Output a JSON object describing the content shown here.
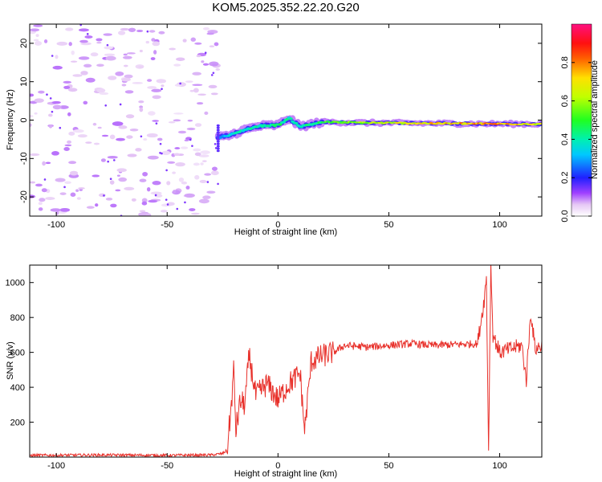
{
  "title": "KOM5.2025.352.22.20.G20",
  "chart_data": [
    {
      "type": "heatmap",
      "name": "spectrogram",
      "xlabel": "Height of straight line (km)",
      "ylabel": "Frequency (Hz)",
      "xlim": [
        -112,
        119
      ],
      "ylim": [
        -25,
        25
      ],
      "xticks": [
        -100,
        -50,
        0,
        50,
        100
      ],
      "yticks": [
        -20,
        -10,
        0,
        10,
        20
      ],
      "colorbar": {
        "label": "Normalized spectral amplitude",
        "range": [
          0,
          1
        ],
        "ticks": [
          0.0,
          0.2,
          0.4,
          0.6,
          0.8
        ],
        "colormap": "white-purple-blue-cyan-green-yellow-red-magenta"
      },
      "ridge": [
        {
          "x": -27,
          "freq": -4.5,
          "amp": 0.3
        },
        {
          "x": -22,
          "freq": -4.0,
          "amp": 0.35
        },
        {
          "x": -15,
          "freq": -2.5,
          "amp": 0.38
        },
        {
          "x": -8,
          "freq": -1.5,
          "amp": 0.4
        },
        {
          "x": 0,
          "freq": -1.3,
          "amp": 0.45
        },
        {
          "x": 5,
          "freq": 0.5,
          "amp": 0.4
        },
        {
          "x": 10,
          "freq": -1.7,
          "amp": 0.4
        },
        {
          "x": 20,
          "freq": -0.5,
          "amp": 0.5
        },
        {
          "x": 40,
          "freq": -0.7,
          "amp": 0.6
        },
        {
          "x": 60,
          "freq": -0.8,
          "amp": 0.7
        },
        {
          "x": 80,
          "freq": -0.9,
          "amp": 0.75
        },
        {
          "x": 100,
          "freq": -1.0,
          "amp": 0.8
        },
        {
          "x": 119,
          "freq": -1.0,
          "amp": 0.65
        }
      ]
    },
    {
      "type": "line",
      "name": "snr",
      "xlabel": "Height of straight line (km)",
      "ylabel": "SNR (v/v)",
      "xlim": [
        -112,
        119
      ],
      "ylim": [
        0,
        1100
      ],
      "xticks": [
        -100,
        -50,
        0,
        50,
        100
      ],
      "yticks": [
        200,
        400,
        600,
        800,
        1000
      ],
      "color": "#e8312b",
      "series": [
        {
          "name": "SNR",
          "x": [
            -112,
            -80,
            -50,
            -30,
            -25,
            -23,
            -21,
            -20,
            -19,
            -17,
            -15,
            -13,
            -10,
            -5,
            0,
            5,
            10,
            12,
            15,
            20,
            25,
            30,
            40,
            50,
            60,
            70,
            80,
            90,
            93,
            94,
            95,
            96,
            97,
            100,
            105,
            110,
            112,
            114,
            116,
            119
          ],
          "y": [
            10,
            12,
            10,
            12,
            20,
            40,
            300,
            500,
            150,
            320,
            300,
            580,
            350,
            420,
            330,
            420,
            480,
            150,
            550,
            580,
            600,
            640,
            630,
            640,
            650,
            640,
            645,
            650,
            900,
            1030,
            40,
            1100,
            700,
            600,
            620,
            640,
            440,
            830,
            620,
            640
          ]
        }
      ]
    }
  ]
}
